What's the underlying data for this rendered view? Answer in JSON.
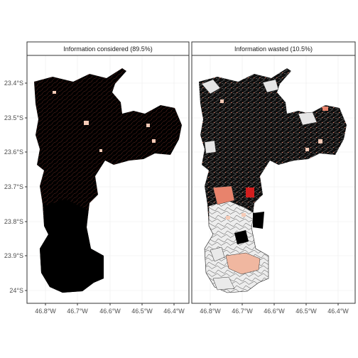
{
  "panels": [
    {
      "title": "Information considered (89.5%)"
    },
    {
      "title": "Information wasted (10.5%)"
    }
  ],
  "axes": {
    "y_ticks": [
      "23.4°S",
      "23.5°S",
      "23.6°S",
      "23.7°S",
      "23.8°S",
      "23.9°S",
      "24°S"
    ],
    "x_ticks": [
      "46.8°W",
      "46.7°W",
      "46.6°W",
      "46.5°W",
      "46.4°W"
    ]
  },
  "colors": {
    "panel_border": "#333333",
    "strip_fill": "#ffffff",
    "grid": "#ebebeb",
    "region_dark": "#000000",
    "region_light": "#eeeeee",
    "highlight_pale": "#f6cbb7",
    "highlight_mid": "#e8836c",
    "highlight_strong": "#d21e1e"
  }
}
